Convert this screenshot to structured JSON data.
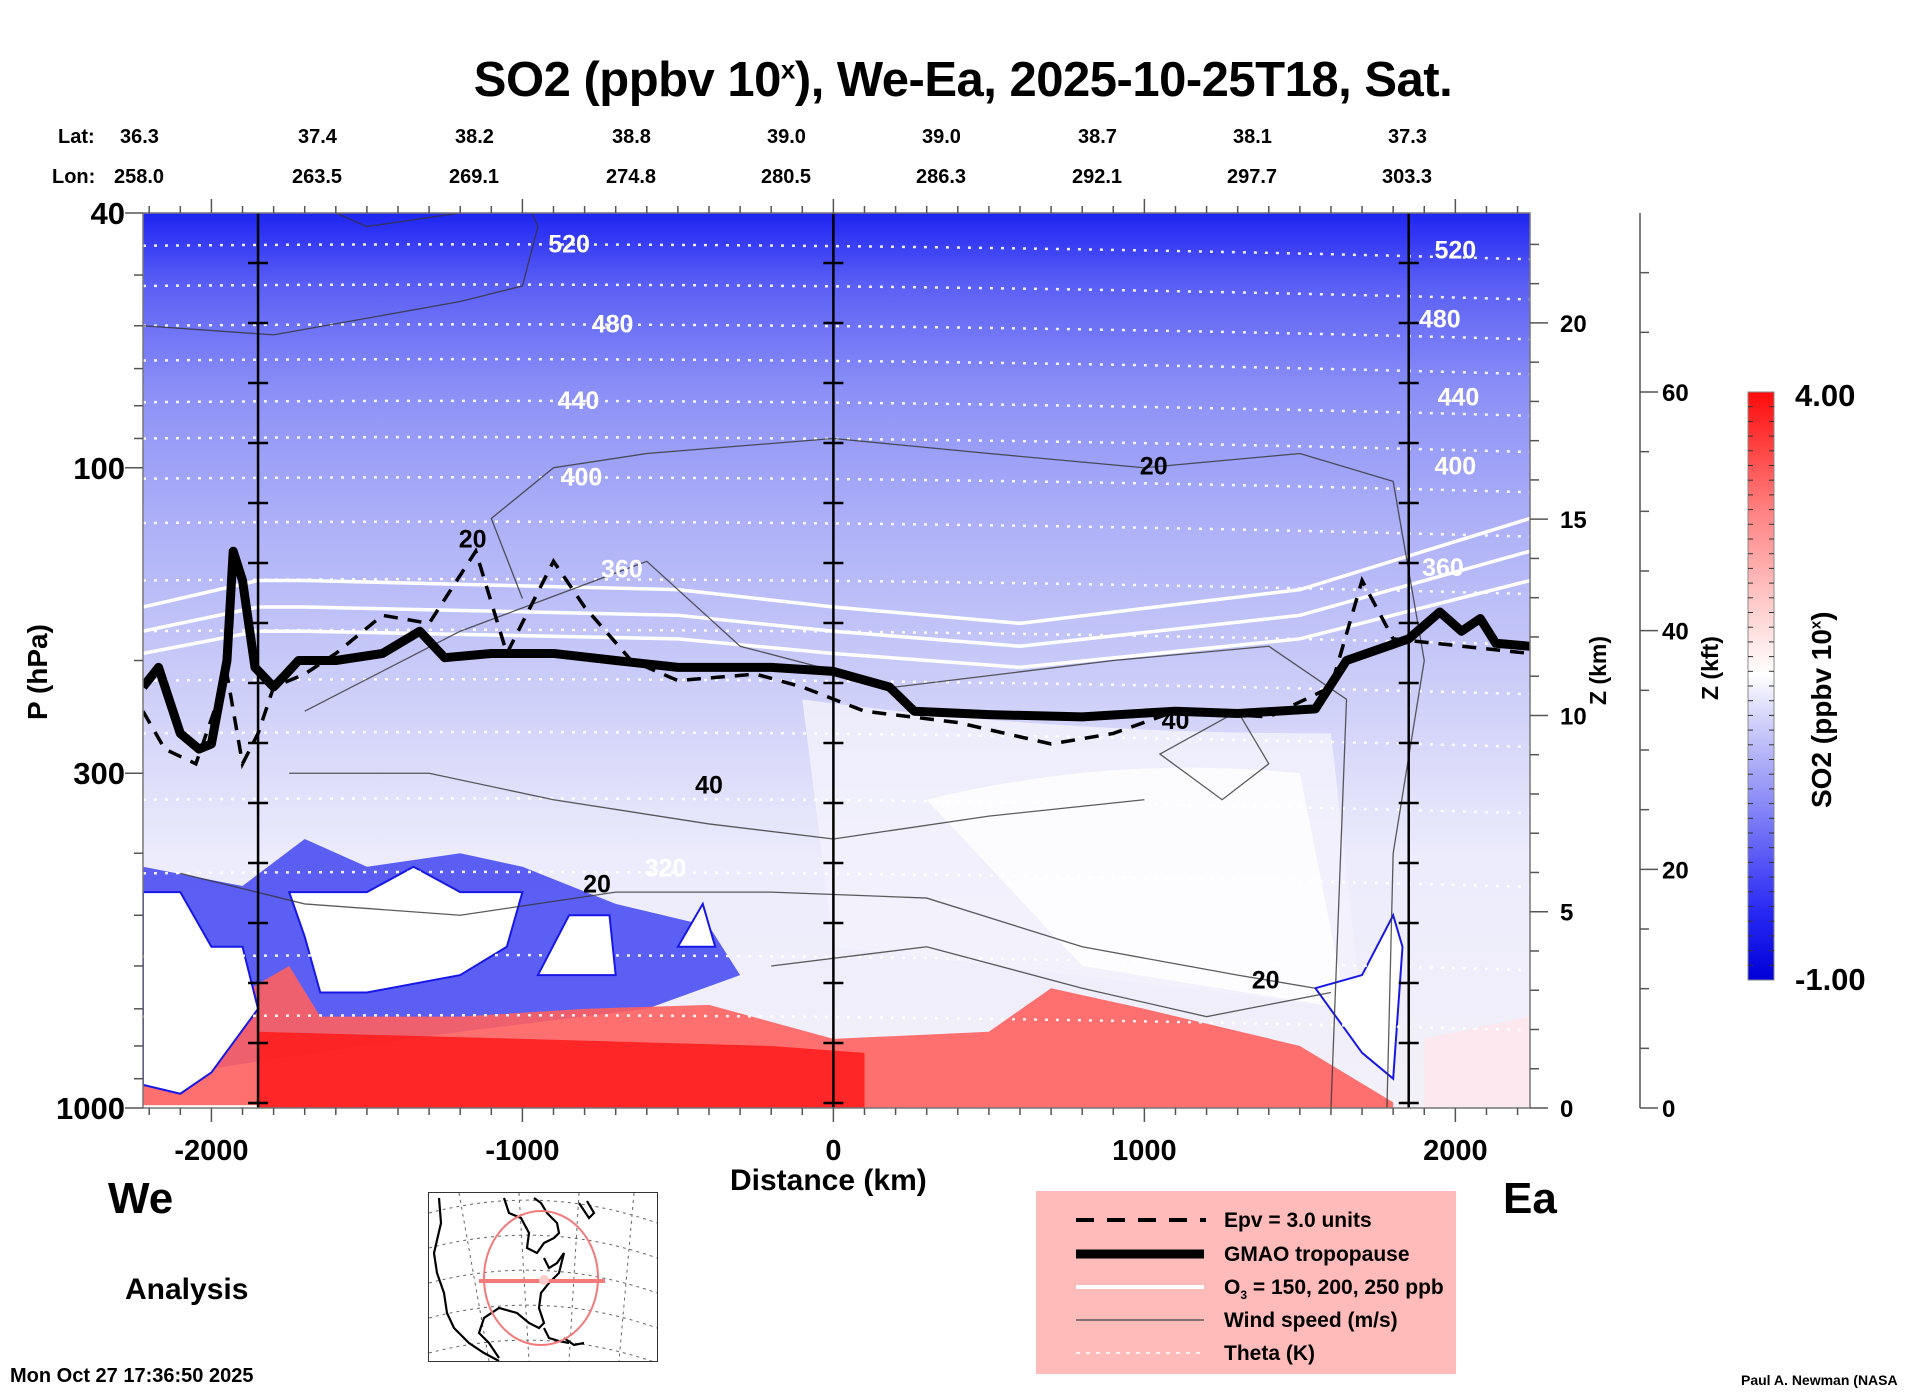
{
  "header": {
    "title_prefix": "SO2 (ppbv 10",
    "title_sup": "x",
    "title_suffix": "), We-Ea, 2025-10-25T18, Sat.",
    "lat_label": "Lat:",
    "lon_label": "Lon:",
    "lat_values": [
      "36.3",
      "37.4",
      "38.2",
      "38.8",
      "39.0",
      "39.0",
      "38.7",
      "38.1",
      "37.3"
    ],
    "lon_values": [
      "258.0",
      "263.5",
      "269.1",
      "274.8",
      "280.5",
      "286.3",
      "292.1",
      "297.7",
      "303.3"
    ]
  },
  "chart_data": {
    "type": "heatmap",
    "title": "SO2 (ppbv 10^x), We-Ea, 2025-10-25T18, Sat.",
    "description": "Vertical cross-section of SO2 (log10 ppbv) along a west-east path with overlaid contours",
    "xlabel": "Distance (km)",
    "ylabel": "P (hPa)",
    "y2label": "Z (km)",
    "y3label": "Z (kft)",
    "xlim": [
      -2220,
      2240
    ],
    "ylim": [
      1000,
      40
    ],
    "yscale": "log",
    "x_ticks": [
      -2000,
      -1000,
      0,
      1000,
      2000
    ],
    "x_tick_labels": [
      "-2000",
      "-1000",
      "0",
      "1000",
      "2000"
    ],
    "y_ticks": [
      40,
      100,
      300,
      1000
    ],
    "y_tick_labels": [
      "40",
      "100",
      "300",
      "1000"
    ],
    "z_km_ticks": [
      0,
      5,
      10,
      15,
      20
    ],
    "z_km_tick_labels": [
      "0",
      "5",
      "10",
      "15",
      "20"
    ],
    "z_km_range": [
      0,
      22.8
    ],
    "z_kft_ticks": [
      0,
      20,
      40,
      60
    ],
    "z_kft_tick_labels": [
      "0",
      "20",
      "40",
      "60"
    ],
    "z_kft_range": [
      0,
      75
    ],
    "section_markers_km": [
      -1850,
      0,
      1850
    ],
    "colorbar": {
      "label": "SO2 (ppbv 10^x)",
      "label_prefix": "SO2 (ppbv 10",
      "label_sup": "x",
      "label_suffix": ")",
      "min": -1.0,
      "max": 4.0,
      "min_label": "-1.00",
      "max_label": "4.00",
      "low_color": "#0000e6",
      "mid_color": "#ffffff",
      "high_color": "#ff0000"
    },
    "theta_labels": [
      {
        "value": "520",
        "x_km": -850,
        "p": 45
      },
      {
        "value": "480",
        "x_km": -710,
        "p": 60
      },
      {
        "value": "440",
        "x_km": -820,
        "p": 79
      },
      {
        "value": "400",
        "x_km": -810,
        "p": 104
      },
      {
        "value": "360",
        "x_km": -680,
        "p": 145
      },
      {
        "value": "320",
        "x_km": -540,
        "p": 425
      },
      {
        "value": "520",
        "x_km": 2000,
        "p": 46
      },
      {
        "value": "480",
        "x_km": 1950,
        "p": 59
      },
      {
        "value": "440",
        "x_km": 2010,
        "p": 78
      },
      {
        "value": "400",
        "x_km": 2000,
        "p": 100
      },
      {
        "value": "360",
        "x_km": 1960,
        "p": 144
      }
    ],
    "wind_labels": [
      {
        "value": "20",
        "x_km": 1030,
        "p": 100
      },
      {
        "value": "20",
        "x_km": -1160,
        "p": 130
      },
      {
        "value": "40",
        "x_km": -400,
        "p": 315
      },
      {
        "value": "20",
        "x_km": -760,
        "p": 450
      },
      {
        "value": "40",
        "x_km": 1100,
        "p": 250
      },
      {
        "value": "20",
        "x_km": 1390,
        "p": 635
      }
    ],
    "tropopause_km_p": [
      [
        -2220,
        220
      ],
      [
        -2170,
        205
      ],
      [
        -2100,
        260
      ],
      [
        -2040,
        275
      ],
      [
        -2000,
        270
      ],
      [
        -1950,
        200
      ],
      [
        -1930,
        135
      ],
      [
        -1900,
        150
      ],
      [
        -1860,
        205
      ],
      [
        -1800,
        220
      ],
      [
        -1760,
        210
      ],
      [
        -1720,
        200
      ],
      [
        -1600,
        200
      ],
      [
        -1450,
        195
      ],
      [
        -1330,
        180
      ],
      [
        -1250,
        198
      ],
      [
        -1100,
        195
      ],
      [
        -900,
        195
      ],
      [
        -700,
        200
      ],
      [
        -500,
        205
      ],
      [
        -200,
        205
      ],
      [
        0,
        208
      ],
      [
        180,
        220
      ],
      [
        260,
        240
      ],
      [
        500,
        243
      ],
      [
        800,
        245
      ],
      [
        1100,
        240
      ],
      [
        1300,
        242
      ],
      [
        1550,
        238
      ],
      [
        1650,
        200
      ],
      [
        1850,
        185
      ],
      [
        1950,
        168
      ],
      [
        2020,
        180
      ],
      [
        2080,
        172
      ],
      [
        2130,
        188
      ],
      [
        2240,
        190
      ]
    ],
    "legend": [
      {
        "style": "dashed",
        "label": "Epv = 3.0 units"
      },
      {
        "style": "thick-solid",
        "label": "GMAO tropopause"
      },
      {
        "style": "white-solid",
        "label_prefix": "O",
        "label_sub": "3",
        "label_suffix": " = 150, 200, 250 ppb"
      },
      {
        "style": "thin-solid",
        "label": "Wind speed (m/s)"
      },
      {
        "style": "white-dotted",
        "label": "Theta (K)"
      }
    ]
  },
  "footer": {
    "west_label": "We",
    "east_label": "Ea",
    "analysis_label": "Analysis",
    "timestamp": "Mon Oct 27 17:36:50 2025",
    "credit": "Paul A. Newman (NASA"
  }
}
